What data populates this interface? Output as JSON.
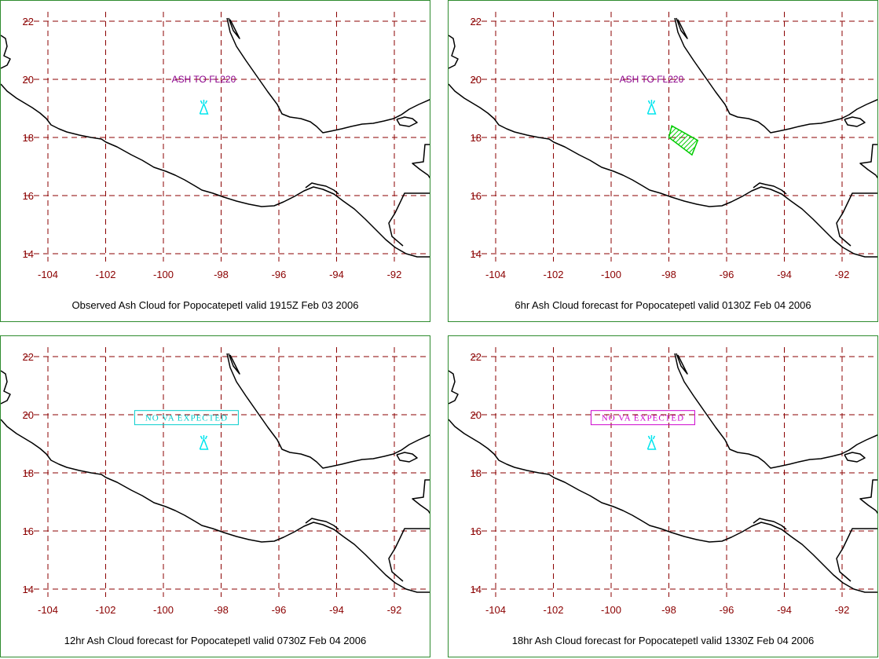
{
  "colors": {
    "border": "#2e8b2e",
    "grid": "#8b0000",
    "axis_text": "#8b0000",
    "coast": "#000000",
    "volcano": "#00e5ee",
    "ash_label": "#8b008b",
    "ash_polygon": "#00cc00",
    "box_cyan": "#00cccc",
    "box_magenta": "#cc00cc"
  },
  "icons": {
    "volcano": "volcano-icon"
  },
  "x_ticks": [
    "-104",
    "-102",
    "-100",
    "-98",
    "-96",
    "-94",
    "-92"
  ],
  "y_ticks": [
    "22",
    "20",
    "18",
    "16",
    "14"
  ],
  "chart_data": [
    {
      "type": "map",
      "caption": "Observed Ash Cloud for Popocatepetl valid 1915Z Feb 03 2006",
      "annotation": {
        "text": "ASH TO FL220",
        "boxed": false,
        "lon": -98.6,
        "lat": 20.0
      },
      "volcano": {
        "name": "Popocatepetl",
        "lon": -98.6,
        "lat": 19.0
      },
      "ash_polygon": null,
      "xlim": [
        -105,
        -90.8
      ],
      "ylim": [
        13.5,
        22.6
      ],
      "grid": true
    },
    {
      "type": "map",
      "caption": "6hr Ash Cloud forecast for Popocatepetl valid 0130Z Feb 04 2006",
      "annotation": {
        "text": "ASH TO FL220",
        "boxed": false,
        "lon": -98.6,
        "lat": 20.0
      },
      "volcano": {
        "name": "Popocatepetl",
        "lon": -98.6,
        "lat": 19.0
      },
      "ash_polygon": [
        [
          -97.9,
          18.4
        ],
        [
          -97.0,
          17.9
        ],
        [
          -97.2,
          17.4
        ],
        [
          -98.0,
          18.0
        ]
      ],
      "xlim": [
        -105,
        -90.8
      ],
      "ylim": [
        13.5,
        22.6
      ],
      "grid": true
    },
    {
      "type": "map",
      "caption": "12hr Ash Cloud forecast for Popocatepetl valid 0730Z Feb 04 2006",
      "annotation": {
        "text": "NO VA EXPECTED",
        "boxed": true,
        "box_color": "cyan",
        "lon": -99.2,
        "lat": 19.9
      },
      "volcano": {
        "name": "Popocatepetl",
        "lon": -98.6,
        "lat": 19.0
      },
      "ash_polygon": null,
      "xlim": [
        -105,
        -90.8
      ],
      "ylim": [
        13.5,
        22.6
      ],
      "grid": true
    },
    {
      "type": "map",
      "caption": "18hr Ash Cloud forecast for Popocatepetl valid 1330Z Feb 04 2006",
      "annotation": {
        "text": "NO VA EXPECTED",
        "boxed": true,
        "box_color": "magenta",
        "lon": -98.9,
        "lat": 19.9
      },
      "volcano": {
        "name": "Popocatepetl",
        "lon": -98.6,
        "lat": 19.0
      },
      "ash_polygon": null,
      "xlim": [
        -105,
        -90.8
      ],
      "ylim": [
        13.5,
        22.6
      ],
      "grid": true
    }
  ]
}
